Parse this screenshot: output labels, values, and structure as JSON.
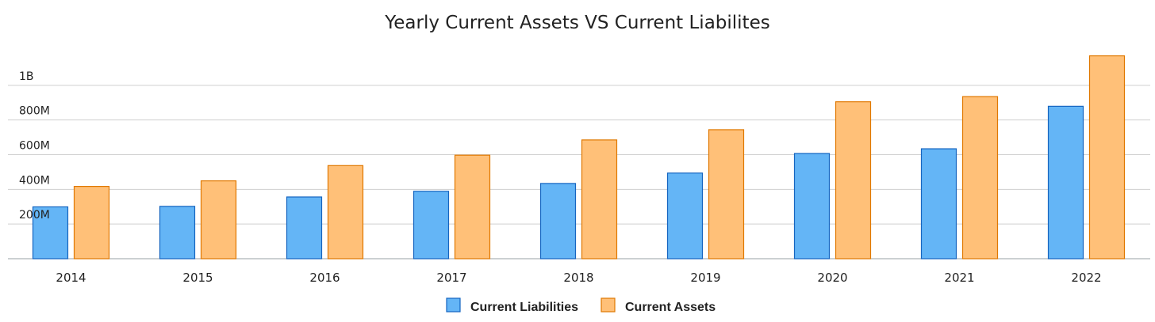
{
  "chart_data": {
    "type": "bar",
    "title": "Yearly Current Assets VS Current Liabilites",
    "categories": [
      "2014",
      "2015",
      "2016",
      "2017",
      "2018",
      "2019",
      "2020",
      "2021",
      "2022"
    ],
    "series": [
      {
        "name": "Current Liabilities",
        "color": "#64b5f6",
        "stroke": "#1565c0",
        "values": [
          299000000,
          302000000,
          356000000,
          389000000,
          434000000,
          494000000,
          607000000,
          634000000,
          879000000
        ]
      },
      {
        "name": "Current Assets",
        "color": "#ffc078",
        "stroke": "#e07800",
        "values": [
          417000000,
          449000000,
          537000000,
          597000000,
          685000000,
          744000000,
          905000000,
          935000000,
          1170000000
        ]
      }
    ],
    "y_ticks": [
      {
        "value": 200000000,
        "label": "200M"
      },
      {
        "value": 400000000,
        "label": "400M"
      },
      {
        "value": 600000000,
        "label": "600M"
      },
      {
        "value": 800000000,
        "label": "800M"
      },
      {
        "value": 1000000000,
        "label": "1B"
      }
    ],
    "ylim": [
      0,
      1200000000
    ],
    "grid": true,
    "legend": "bottom-center",
    "xlabel": "",
    "ylabel": ""
  }
}
